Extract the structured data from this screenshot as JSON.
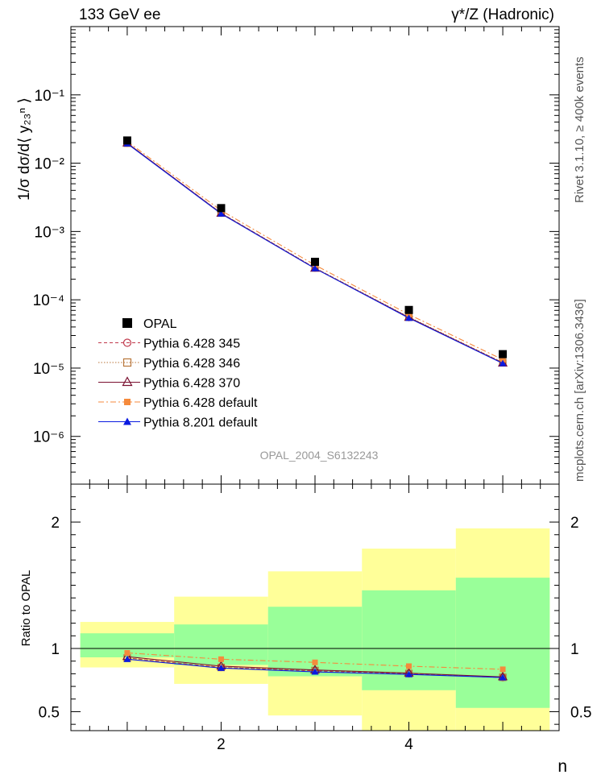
{
  "header": {
    "left": "133 GeV ee",
    "right": "γ*/Z (Hadronic)"
  },
  "side_labels": {
    "rivet": "Rivet 3.1.10, ≥ 400k events",
    "mcplots": "mcplots.cern.ch [arXiv:1306.3436]"
  },
  "analysis_id": "OPAL_2004_S6132243",
  "colors": {
    "data": "#000000",
    "p345": "#c0384b",
    "p346": "#b8763a",
    "p370": "#7a1030",
    "pdef": "#f58a3c",
    "p8": "#0a1ae0",
    "band_inner": "#99ff99",
    "band_outer": "#ffff99"
  },
  "chart_data": [
    {
      "type": "line",
      "name": "main",
      "ylabel": "1/σ dσ/d⟨ y₂₃ⁿ ⟩",
      "yscale": "log",
      "ylim": [
        2e-07,
        1
      ],
      "xlim": [
        0.4,
        5.6
      ],
      "y_ticks": [
        {
          "value": 1e-06,
          "label": "10⁻⁶"
        },
        {
          "value": 1e-05,
          "label": "10⁻⁵"
        },
        {
          "value": 0.0001,
          "label": "10⁻⁴"
        },
        {
          "value": 0.001,
          "label": "10⁻³"
        },
        {
          "value": 0.01,
          "label": "10⁻²"
        },
        {
          "value": 0.1,
          "label": "10⁻¹"
        }
      ],
      "x": [
        1,
        2,
        3,
        4,
        5
      ],
      "data": {
        "name": "OPAL",
        "values": [
          0.0215,
          0.0022,
          0.00036,
          7.1e-05,
          1.6e-05
        ]
      },
      "series": [
        {
          "name": "Pythia 6.428 345",
          "key": "p345",
          "values": [
            0.0196,
            0.00186,
            0.000292,
            5.5e-05,
            1.2e-05
          ]
        },
        {
          "name": "Pythia 6.428 346",
          "key": "p346",
          "values": [
            0.0196,
            0.00186,
            0.000294,
            5.6e-05,
            1.21e-05
          ]
        },
        {
          "name": "Pythia 6.428 370",
          "key": "p370",
          "values": [
            0.0197,
            0.00184,
            0.000288,
            5.5e-05,
            1.18e-05
          ]
        },
        {
          "name": "Pythia 6.428 default",
          "key": "pdef",
          "values": [
            0.0208,
            0.00203,
            0.000322,
            6.1e-05,
            1.33e-05
          ]
        },
        {
          "name": "Pythia 8.201 default",
          "key": "p8",
          "values": [
            0.0193,
            0.00182,
            0.000288,
            5.4e-05,
            1.17e-05
          ]
        }
      ],
      "legend_placement": "lower-left"
    },
    {
      "type": "line",
      "name": "ratio",
      "ylabel": "Ratio to OPAL",
      "xlabel": "n",
      "ylim": [
        0.35,
        2.3
      ],
      "xlim": [
        0.4,
        5.6
      ],
      "y_ticks": [
        {
          "value": 0.5,
          "label": "0.5"
        },
        {
          "value": 1,
          "label": "1"
        },
        {
          "value": 2,
          "label": "2"
        }
      ],
      "x_ticks": [
        {
          "value": 2,
          "label": "2"
        },
        {
          "value": 4,
          "label": "4"
        }
      ],
      "bins": [
        {
          "x": 1,
          "lo": 0.5,
          "hi": 1.5,
          "inner": [
            0.93,
            1.12
          ],
          "outer": [
            0.85,
            1.21
          ]
        },
        {
          "x": 2,
          "lo": 1.5,
          "hi": 2.5,
          "inner": [
            0.87,
            1.19
          ],
          "outer": [
            0.72,
            1.41
          ]
        },
        {
          "x": 3,
          "lo": 2.5,
          "hi": 3.5,
          "inner": [
            0.78,
            1.33
          ],
          "outer": [
            0.47,
            1.61
          ]
        },
        {
          "x": 4,
          "lo": 3.5,
          "hi": 4.5,
          "inner": [
            0.67,
            1.46
          ],
          "outer": [
            0.35,
            1.79
          ]
        },
        {
          "x": 5,
          "lo": 4.5,
          "hi": 5.5,
          "inner": [
            0.53,
            1.56
          ],
          "outer": [
            0.35,
            1.95
          ]
        }
      ],
      "x": [
        1,
        2,
        3,
        4,
        5
      ],
      "series": [
        {
          "name": "Pythia 6.428 345",
          "key": "p345",
          "values": [
            0.925,
            0.85,
            0.822,
            0.8,
            0.77
          ]
        },
        {
          "name": "Pythia 6.428 346",
          "key": "p346",
          "values": [
            0.925,
            0.85,
            0.826,
            0.802,
            0.772
          ]
        },
        {
          "name": "Pythia 6.428 370",
          "key": "p370",
          "values": [
            0.935,
            0.86,
            0.83,
            0.805,
            0.775
          ]
        },
        {
          "name": "Pythia 6.428 default",
          "key": "pdef",
          "values": [
            0.965,
            0.915,
            0.89,
            0.86,
            0.835
          ]
        },
        {
          "name": "Pythia 8.201 default",
          "key": "p8",
          "values": [
            0.915,
            0.845,
            0.815,
            0.795,
            0.77
          ]
        }
      ]
    }
  ]
}
